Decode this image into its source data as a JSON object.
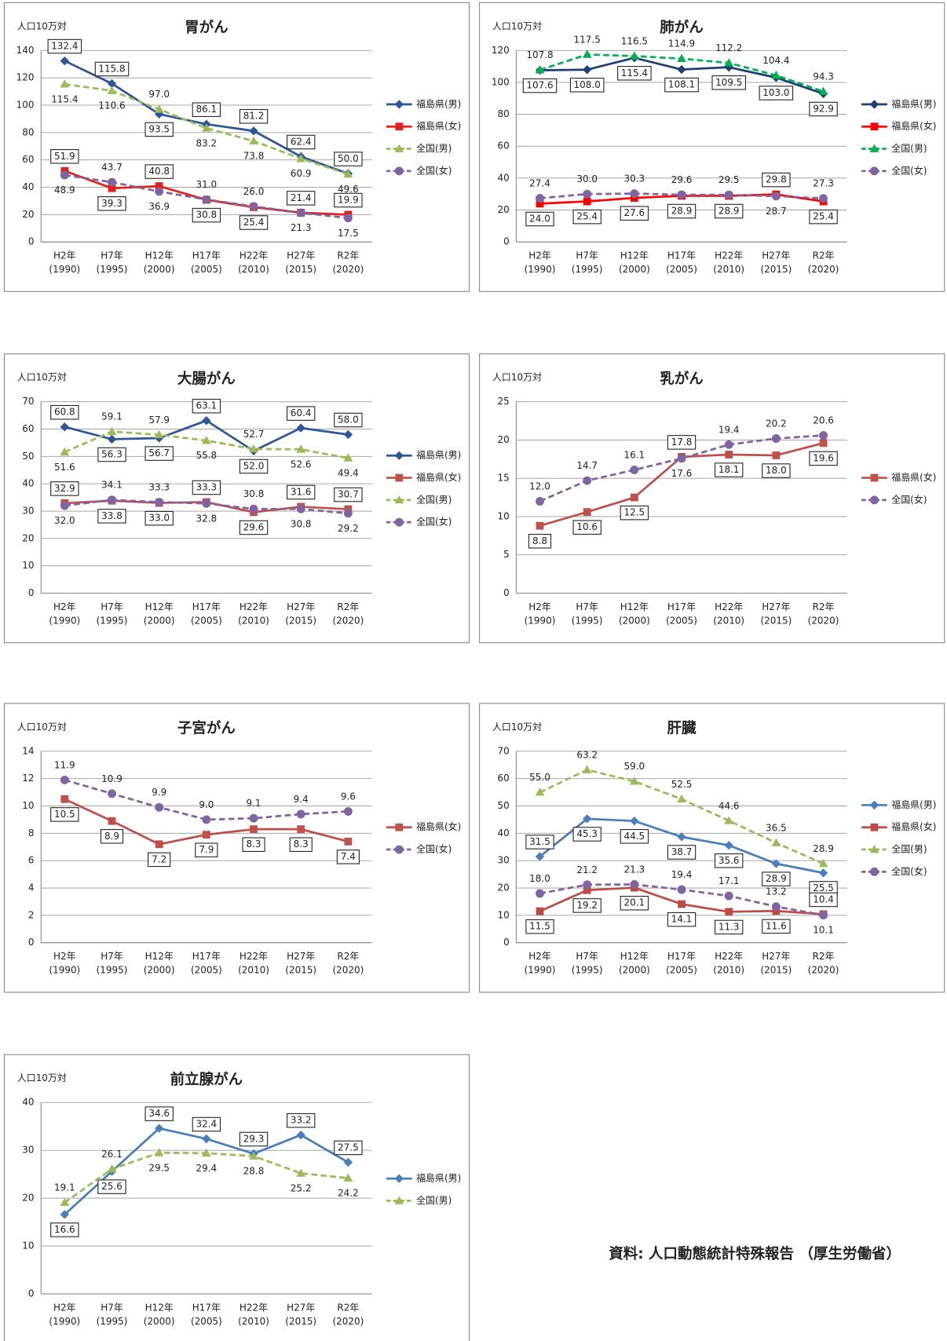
{
  "chart_data": [
    {
      "type": "line",
      "title": "胃がん",
      "y_label": "人口10万対",
      "legend": "right",
      "grid": true,
      "categories": [
        "H2年\n(1990)",
        "H7年\n(1995)",
        "H12年\n(2000)",
        "H17年\n(2005)",
        "H22年\n(2010)",
        "H27年\n(2015)",
        "R2年\n(2020)"
      ],
      "ylim": [
        0,
        140
      ],
      "yticks": [
        0,
        20,
        40,
        60,
        80,
        100,
        120,
        140
      ],
      "series": [
        {
          "name": "福島県(男)",
          "color": "#2e5597",
          "marker": "diamond",
          "dashed": false,
          "boxed_labels": true,
          "values": [
            132.4,
            115.8,
            93.5,
            86.1,
            81.2,
            62.4,
            50.0
          ],
          "value_labels": [
            "132.4",
            "115.8",
            "93.5",
            "86.1",
            "81.2",
            "62.4",
            "50.0"
          ]
        },
        {
          "name": "福島県(女)",
          "color": "#e0201b",
          "marker": "square",
          "dashed": false,
          "boxed_labels": true,
          "values": [
            51.9,
            39.3,
            40.8,
            30.8,
            25.4,
            21.4,
            19.9
          ],
          "value_labels": [
            "51.9",
            "39.3",
            "40.8",
            "30.8",
            "25.4",
            "21.4",
            "19.9"
          ]
        },
        {
          "name": "全国(男)",
          "color": "#9bbb59",
          "marker": "triangle",
          "dashed": true,
          "boxed_labels": false,
          "values": [
            115.4,
            110.6,
            97.0,
            83.2,
            73.8,
            60.9,
            49.6
          ],
          "value_labels": [
            "115.4",
            "110.6",
            "97.0",
            "83.2",
            "73.8",
            "60.9",
            "49.6"
          ]
        },
        {
          "name": "全国(女)",
          "color": "#8064a2",
          "marker": "circle",
          "dashed": true,
          "boxed_labels": false,
          "values": [
            48.9,
            43.7,
            36.9,
            31.0,
            26.0,
            21.3,
            17.5
          ],
          "value_labels": [
            "48.9",
            "43.7",
            "36.9",
            "31.0",
            "26.0",
            "21.3",
            "17.5"
          ]
        }
      ]
    },
    {
      "type": "line",
      "title": "肺がん",
      "y_label": "人口10万対",
      "legend": "right",
      "grid": true,
      "categories": [
        "H2年\n(1990)",
        "H7年\n(1995)",
        "H12年\n(2000)",
        "H17年\n(2005)",
        "H22年\n(2010)",
        "H27年\n(2015)",
        "R2年\n(2020)"
      ],
      "ylim": [
        0,
        120
      ],
      "yticks": [
        0,
        20,
        40,
        60,
        80,
        100,
        120
      ],
      "series": [
        {
          "name": "福島県(男)",
          "color": "#1f3f75",
          "marker": "diamond",
          "dashed": false,
          "boxed_labels": true,
          "values": [
            107.6,
            108.0,
            115.4,
            108.1,
            109.5,
            103.0,
            92.9
          ],
          "value_labels": [
            "107.6",
            "108.0",
            "115.4",
            "108.1",
            "109.5",
            "103.0",
            "92.9"
          ]
        },
        {
          "name": "福島県(女)",
          "color": "#ff0000",
          "marker": "square",
          "dashed": false,
          "boxed_labels": true,
          "values": [
            24.0,
            25.4,
            27.6,
            28.9,
            28.9,
            29.8,
            25.4
          ],
          "value_labels": [
            "24.0",
            "25.4",
            "27.6",
            "28.9",
            "28.9",
            "29.8",
            "25.4"
          ]
        },
        {
          "name": "全国(男)",
          "color": "#00b050",
          "marker": "triangle",
          "dashed": true,
          "boxed_labels": false,
          "values": [
            107.8,
            117.5,
            116.5,
            114.9,
            112.2,
            104.4,
            94.3
          ],
          "value_labels": [
            "107.8",
            "117.5",
            "116.5",
            "114.9",
            "112.2",
            "104.4",
            "94.3"
          ]
        },
        {
          "name": "全国(女)",
          "color": "#8064a2",
          "marker": "circle",
          "dashed": true,
          "boxed_labels": false,
          "values": [
            27.4,
            30.0,
            30.3,
            29.6,
            29.5,
            28.7,
            27.3
          ],
          "value_labels": [
            "27.4",
            "30.0",
            "30.3",
            "29.6",
            "29.5",
            "28.7",
            "27.3"
          ]
        }
      ]
    },
    {
      "type": "line",
      "title": "大腸がん",
      "y_label": "人口10万対",
      "legend": "right",
      "grid": true,
      "categories": [
        "H2年\n(1990)",
        "H7年\n(1995)",
        "H12年\n(2000)",
        "H17年\n(2005)",
        "H22年\n(2010)",
        "H27年\n(2015)",
        "R2年\n(2020)"
      ],
      "ylim": [
        0,
        70
      ],
      "yticks": [
        0,
        10,
        20,
        30,
        40,
        50,
        60,
        70
      ],
      "series": [
        {
          "name": "福島県(男)",
          "color": "#2e5597",
          "marker": "diamond",
          "dashed": false,
          "boxed_labels": true,
          "values": [
            60.8,
            56.3,
            56.7,
            63.1,
            52.0,
            60.4,
            58.0
          ],
          "value_labels": [
            "60.8",
            "56.3",
            "56.7",
            "63.1",
            "52.0",
            "60.4",
            "58.0"
          ]
        },
        {
          "name": "福島県(女)",
          "color": "#c0504d",
          "marker": "square",
          "dashed": false,
          "boxed_labels": true,
          "values": [
            32.9,
            33.8,
            33.0,
            33.3,
            29.6,
            31.6,
            30.7
          ],
          "value_labels": [
            "32.9",
            "33.8",
            "33.0",
            "33.3",
            "29.6",
            "31.6",
            "30.7"
          ]
        },
        {
          "name": "全国(男)",
          "color": "#9bbb59",
          "marker": "triangle",
          "dashed": true,
          "boxed_labels": false,
          "values": [
            51.6,
            59.1,
            57.9,
            55.8,
            52.7,
            52.6,
            49.4
          ],
          "value_labels": [
            "51.6",
            "59.1",
            "57.9",
            "55.8",
            "52.7",
            "52.6",
            "49.4"
          ]
        },
        {
          "name": "全国(女)",
          "color": "#8064a2",
          "marker": "circle",
          "dashed": true,
          "boxed_labels": false,
          "values": [
            32.0,
            34.1,
            33.3,
            32.8,
            30.8,
            30.8,
            29.2
          ],
          "value_labels": [
            "32.0",
            "34.1",
            "33.3",
            "32.8",
            "30.8",
            "30.8",
            "29.2"
          ]
        }
      ]
    },
    {
      "type": "line",
      "title": "乳がん",
      "y_label": "人口10万対",
      "legend": "right",
      "grid": true,
      "categories": [
        "H2年\n(1990)",
        "H7年\n(1995)",
        "H12年\n(2000)",
        "H17年\n(2005)",
        "H22年\n(2010)",
        "H27年\n(2015)",
        "R2年\n(2020)"
      ],
      "ylim": [
        0,
        25
      ],
      "yticks": [
        0,
        5,
        10,
        15,
        20,
        25
      ],
      "series": [
        {
          "name": "福島県(女)",
          "color": "#c0504d",
          "marker": "square",
          "dashed": false,
          "boxed_labels": true,
          "values": [
            8.8,
            10.6,
            12.5,
            17.8,
            18.1,
            18.0,
            19.6
          ],
          "value_labels": [
            "8.8",
            "10.6",
            "12.5",
            "17.8",
            "18.1",
            "18.0",
            "19.6"
          ]
        },
        {
          "name": "全国(女)",
          "color": "#8064a2",
          "marker": "circle",
          "dashed": true,
          "boxed_labels": false,
          "values": [
            12.0,
            14.7,
            16.1,
            17.6,
            19.4,
            20.2,
            20.6
          ],
          "value_labels": [
            "12.0",
            "14.7",
            "16.1",
            "17.6",
            "19.4",
            "20.2",
            "20.6"
          ]
        }
      ]
    },
    {
      "type": "line",
      "title": "子宮がん",
      "y_label": "人口10万対",
      "legend": "right",
      "grid": true,
      "categories": [
        "H2年\n(1990)",
        "H7年\n(1995)",
        "H12年\n(2000)",
        "H17年\n(2005)",
        "H22年\n(2010)",
        "H27年\n(2015)",
        "R2年\n(2020)"
      ],
      "ylim": [
        0,
        14
      ],
      "yticks": [
        0,
        2,
        4,
        6,
        8,
        10,
        12,
        14
      ],
      "series": [
        {
          "name": "福島県(女)",
          "color": "#c0504d",
          "marker": "square",
          "dashed": false,
          "boxed_labels": true,
          "values": [
            10.5,
            8.9,
            7.2,
            7.9,
            8.3,
            8.3,
            7.4
          ],
          "value_labels": [
            "10.5",
            "8.9",
            "7.2",
            "7.9",
            "8.3",
            "8.3",
            "7.4"
          ]
        },
        {
          "name": "全国(女)",
          "color": "#8064a2",
          "marker": "circle",
          "dashed": true,
          "boxed_labels": false,
          "values": [
            11.9,
            10.9,
            9.9,
            9.0,
            9.1,
            9.4,
            9.6
          ],
          "value_labels": [
            "11.9",
            "10.9",
            "9.9",
            "9.0",
            "9.1",
            "9.4",
            "9.6"
          ]
        }
      ]
    },
    {
      "type": "line",
      "title": "肝臓",
      "y_label": "人口10万対",
      "legend": "right",
      "grid": true,
      "categories": [
        "H2年\n(1990)",
        "H7年\n(1995)",
        "H12年\n(2000)",
        "H17年\n(2005)",
        "H22年\n(2010)",
        "H27年\n(2015)",
        "R2年\n(2020)"
      ],
      "ylim": [
        0,
        70
      ],
      "yticks": [
        0,
        10,
        20,
        30,
        40,
        50,
        60,
        70
      ],
      "series": [
        {
          "name": "福島県(男)",
          "color": "#4a7ebb",
          "marker": "diamond",
          "dashed": false,
          "boxed_labels": true,
          "values": [
            31.5,
            45.3,
            44.5,
            38.7,
            35.6,
            28.9,
            25.5
          ],
          "value_labels": [
            "31.5",
            "45.3",
            "44.5",
            "38.7",
            "35.6",
            "28.9",
            "25.5"
          ]
        },
        {
          "name": "福島県(女)",
          "color": "#be4b48",
          "marker": "square",
          "dashed": false,
          "boxed_labels": true,
          "values": [
            11.5,
            19.2,
            20.1,
            14.1,
            11.3,
            11.6,
            10.4
          ],
          "value_labels": [
            "11.5",
            "19.2",
            "20.1",
            "14.1",
            "11.3",
            "11.6",
            "10.4"
          ]
        },
        {
          "name": "全国(男)",
          "color": "#9bbb59",
          "marker": "triangle",
          "dashed": true,
          "boxed_labels": false,
          "values": [
            55.0,
            63.2,
            59.0,
            52.5,
            44.6,
            36.5,
            28.9
          ],
          "value_labels": [
            "55.0",
            "63.2",
            "59.0",
            "52.5",
            "44.6",
            "36.5",
            "28.9"
          ]
        },
        {
          "name": "全国(女)",
          "color": "#8064a2",
          "marker": "circle",
          "dashed": true,
          "boxed_labels": false,
          "values": [
            18.0,
            21.2,
            21.3,
            19.4,
            17.1,
            13.2,
            10.1
          ],
          "value_labels": [
            "18.0",
            "21.2",
            "21.3",
            "19.4",
            "17.1",
            "13.2",
            "10.1"
          ]
        }
      ]
    },
    {
      "type": "line",
      "title": "前立腺がん",
      "y_label": "人口10万対",
      "legend": "right",
      "grid": true,
      "categories": [
        "H2年\n(1990)",
        "H7年\n(1995)",
        "H12年\n(2000)",
        "H17年\n(2005)",
        "H22年\n(2010)",
        "H27年\n(2015)",
        "R2年\n(2020)"
      ],
      "ylim": [
        0,
        40
      ],
      "yticks": [
        0,
        10,
        20,
        30,
        40
      ],
      "series": [
        {
          "name": "福島県(男)",
          "color": "#4a7ebb",
          "marker": "diamond",
          "dashed": false,
          "boxed_labels": true,
          "values": [
            16.6,
            25.6,
            34.6,
            32.4,
            29.3,
            33.2,
            27.5
          ],
          "value_labels": [
            "16.6",
            "25.6",
            "34.6",
            "32.4",
            "29.3",
            "33.2",
            "27.5"
          ]
        },
        {
          "name": "全国(男)",
          "color": "#9bbb59",
          "marker": "triangle",
          "dashed": true,
          "boxed_labels": false,
          "values": [
            19.1,
            26.1,
            29.5,
            29.4,
            28.8,
            25.2,
            24.2
          ],
          "value_labels": [
            "19.1",
            "26.1",
            "29.5",
            "29.4",
            "28.8",
            "25.2",
            "24.2"
          ]
        }
      ]
    }
  ],
  "source": "資料: 人口動態統計特殊報告 （厚生労働省）"
}
